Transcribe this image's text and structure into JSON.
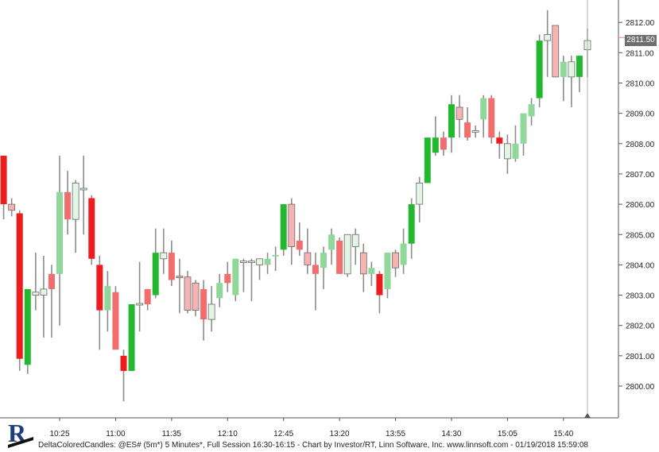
{
  "footer_text": "DeltaColoredCandles: @ES# (5m*) 5 Minutes*, Full Session 16:30-16:15 - Chart by Investor/RT, Linn Software, Inc. www.linnsoft.com - 01/19/2018 15:59:08",
  "last_price_label": "2811.50",
  "logo_letter": "R",
  "colors": {
    "strong_down": "#ee1c1c",
    "mid_down": "#f26d6d",
    "light_down": "#f6b3b3",
    "strong_up": "#23b82f",
    "mid_up": "#8fd89a",
    "light_up": "#e3f6e5",
    "wick": "#8c8c8c"
  },
  "chart_data": {
    "type": "candlestick",
    "title": "",
    "ylim": [
      2799.2,
      2812.6
    ],
    "yticks": [
      "2800.00",
      "2801.00",
      "2802.00",
      "2803.00",
      "2804.00",
      "2805.00",
      "2806.00",
      "2807.00",
      "2808.00",
      "2809.00",
      "2810.00",
      "2811.00",
      "2812.00"
    ],
    "xticks": [
      "10:25",
      "11:00",
      "11:35",
      "12:10",
      "12:45",
      "13:20",
      "13:55",
      "14:30",
      "15:05",
      "15:40"
    ],
    "candles": [
      {
        "o": 2807.6,
        "h": 2807.6,
        "l": 2805.5,
        "c": 2806.0,
        "shade": "strong_down"
      },
      {
        "o": 2806.0,
        "h": 2806.2,
        "l": 2805.6,
        "c": 2805.8,
        "shade": "light_down"
      },
      {
        "o": 2805.7,
        "h": 2805.8,
        "l": 2800.5,
        "c": 2800.9,
        "shade": "strong_down"
      },
      {
        "o": 2800.7,
        "h": 2803.2,
        "l": 2800.4,
        "c": 2803.2,
        "shade": "strong_up"
      },
      {
        "o": 2803.0,
        "h": 2804.4,
        "l": 2802.5,
        "c": 2803.1,
        "shade": "light_up"
      },
      {
        "o": 2803.0,
        "h": 2804.3,
        "l": 2801.6,
        "c": 2803.2,
        "shade": "light_up"
      },
      {
        "o": 2803.2,
        "h": 2804.0,
        "l": 2801.6,
        "c": 2803.7,
        "shade": "mid_down"
      },
      {
        "o": 2803.7,
        "h": 2807.6,
        "l": 2802.0,
        "c": 2806.4,
        "shade": "mid_up"
      },
      {
        "o": 2806.4,
        "h": 2807.1,
        "l": 2805.0,
        "c": 2805.5,
        "shade": "mid_down"
      },
      {
        "o": 2805.5,
        "h": 2806.8,
        "l": 2804.4,
        "c": 2806.7,
        "shade": "light_up"
      },
      {
        "o": 2806.5,
        "h": 2807.6,
        "l": 2805.0,
        "c": 2806.5,
        "shade": "light_up"
      },
      {
        "o": 2806.2,
        "h": 2806.3,
        "l": 2804.0,
        "c": 2804.2,
        "shade": "strong_down"
      },
      {
        "o": 2804.0,
        "h": 2804.3,
        "l": 2801.2,
        "c": 2802.5,
        "shade": "strong_down"
      },
      {
        "o": 2802.5,
        "h": 2803.8,
        "l": 2801.8,
        "c": 2803.3,
        "shade": "mid_up"
      },
      {
        "o": 2803.1,
        "h": 2803.3,
        "l": 2801.3,
        "c": 2801.2,
        "shade": "mid_down"
      },
      {
        "o": 2801.0,
        "h": 2801.2,
        "l": 2799.5,
        "c": 2800.5,
        "shade": "strong_down"
      },
      {
        "o": 2800.5,
        "h": 2802.7,
        "l": 2800.5,
        "c": 2802.7,
        "shade": "strong_up"
      },
      {
        "o": 2802.7,
        "h": 2804.1,
        "l": 2801.8,
        "c": 2802.7,
        "shade": "light_up"
      },
      {
        "o": 2802.7,
        "h": 2803.1,
        "l": 2802.5,
        "c": 2803.2,
        "shade": "mid_down"
      },
      {
        "o": 2803.0,
        "h": 2805.2,
        "l": 2802.9,
        "c": 2804.4,
        "shade": "strong_up"
      },
      {
        "o": 2804.2,
        "h": 2805.2,
        "l": 2803.7,
        "c": 2804.4,
        "shade": "light_up"
      },
      {
        "o": 2804.4,
        "h": 2804.8,
        "l": 2803.3,
        "c": 2803.5,
        "shade": "mid_down"
      },
      {
        "o": 2803.6,
        "h": 2804.2,
        "l": 2802.4,
        "c": 2803.6,
        "shade": "light_down"
      },
      {
        "o": 2803.6,
        "h": 2803.8,
        "l": 2802.4,
        "c": 2802.5,
        "shade": "light_down"
      },
      {
        "o": 2803.4,
        "h": 2803.5,
        "l": 2802.3,
        "c": 2802.5,
        "shade": "light_down"
      },
      {
        "o": 2803.2,
        "h": 2803.5,
        "l": 2801.5,
        "c": 2802.2,
        "shade": "mid_down"
      },
      {
        "o": 2802.2,
        "h": 2803.3,
        "l": 2801.8,
        "c": 2802.7,
        "shade": "light_up"
      },
      {
        "o": 2802.9,
        "h": 2803.7,
        "l": 2802.6,
        "c": 2803.4,
        "shade": "mid_up"
      },
      {
        "o": 2803.7,
        "h": 2804.1,
        "l": 2803.1,
        "c": 2803.4,
        "shade": "mid_down"
      },
      {
        "o": 2803.0,
        "h": 2804.2,
        "l": 2802.8,
        "c": 2804.2,
        "shade": "mid_up"
      },
      {
        "o": 2804.1,
        "h": 2804.2,
        "l": 2803.1,
        "c": 2804.1,
        "shade": "light_up"
      },
      {
        "o": 2804.1,
        "h": 2804.2,
        "l": 2802.8,
        "c": 2804.1,
        "shade": "light_up"
      },
      {
        "o": 2804.0,
        "h": 2804.2,
        "l": 2803.5,
        "c": 2804.2,
        "shade": "light_up"
      },
      {
        "o": 2804.0,
        "h": 2804.4,
        "l": 2803.7,
        "c": 2804.2,
        "shade": "mid_up"
      },
      {
        "o": 2804.3,
        "h": 2804.6,
        "l": 2803.8,
        "c": 2804.3,
        "shade": "mid_up"
      },
      {
        "o": 2804.5,
        "h": 2806.0,
        "l": 2804.3,
        "c": 2806.0,
        "shade": "strong_up"
      },
      {
        "o": 2806.0,
        "h": 2806.2,
        "l": 2804.0,
        "c": 2804.6,
        "shade": "light_down"
      },
      {
        "o": 2804.8,
        "h": 2805.4,
        "l": 2804.3,
        "c": 2804.5,
        "shade": "mid_down"
      },
      {
        "o": 2804.4,
        "h": 2805.2,
        "l": 2803.7,
        "c": 2804.0,
        "shade": "light_down"
      },
      {
        "o": 2804.0,
        "h": 2804.4,
        "l": 2802.5,
        "c": 2803.7,
        "shade": "mid_down"
      },
      {
        "o": 2803.9,
        "h": 2804.6,
        "l": 2803.2,
        "c": 2804.4,
        "shade": "mid_up"
      },
      {
        "o": 2804.5,
        "h": 2805.2,
        "l": 2804.0,
        "c": 2805.0,
        "shade": "mid_up"
      },
      {
        "o": 2804.8,
        "h": 2804.9,
        "l": 2803.7,
        "c": 2803.7,
        "shade": "mid_down"
      },
      {
        "o": 2803.7,
        "h": 2805.0,
        "l": 2803.6,
        "c": 2805.0,
        "shade": "light_up"
      },
      {
        "o": 2805.0,
        "h": 2805.2,
        "l": 2804.0,
        "c": 2804.6,
        "shade": "light_up"
      },
      {
        "o": 2804.4,
        "h": 2804.7,
        "l": 2803.1,
        "c": 2803.7,
        "shade": "light_down"
      },
      {
        "o": 2803.7,
        "h": 2804.1,
        "l": 2803.3,
        "c": 2803.9,
        "shade": "mid_up"
      },
      {
        "o": 2803.7,
        "h": 2803.8,
        "l": 2802.4,
        "c": 2803.0,
        "shade": "strong_down"
      },
      {
        "o": 2803.2,
        "h": 2804.4,
        "l": 2802.9,
        "c": 2804.4,
        "shade": "mid_up"
      },
      {
        "o": 2803.9,
        "h": 2804.5,
        "l": 2803.6,
        "c": 2804.4,
        "shade": "light_down"
      },
      {
        "o": 2804.0,
        "h": 2805.2,
        "l": 2803.7,
        "c": 2804.7,
        "shade": "mid_up"
      },
      {
        "o": 2804.7,
        "h": 2806.2,
        "l": 2804.2,
        "c": 2806.0,
        "shade": "strong_up"
      },
      {
        "o": 2806.0,
        "h": 2806.9,
        "l": 2805.4,
        "c": 2806.7,
        "shade": "light_up"
      },
      {
        "o": 2806.7,
        "h": 2808.2,
        "l": 2806.7,
        "c": 2808.2,
        "shade": "strong_up"
      },
      {
        "o": 2807.7,
        "h": 2808.9,
        "l": 2807.6,
        "c": 2808.2,
        "shade": "strong_up"
      },
      {
        "o": 2807.8,
        "h": 2808.4,
        "l": 2807.6,
        "c": 2808.2,
        "shade": "mid_down"
      },
      {
        "o": 2808.2,
        "h": 2809.6,
        "l": 2807.7,
        "c": 2809.3,
        "shade": "strong_up"
      },
      {
        "o": 2809.2,
        "h": 2809.6,
        "l": 2808.2,
        "c": 2808.8,
        "shade": "light_down"
      },
      {
        "o": 2808.7,
        "h": 2809.2,
        "l": 2808.1,
        "c": 2808.2,
        "shade": "mid_down"
      },
      {
        "o": 2808.4,
        "h": 2808.6,
        "l": 2808.2,
        "c": 2808.4,
        "shade": "light_up"
      },
      {
        "o": 2808.8,
        "h": 2809.6,
        "l": 2808.2,
        "c": 2809.5,
        "shade": "mid_up"
      },
      {
        "o": 2809.5,
        "h": 2809.6,
        "l": 2808.0,
        "c": 2808.2,
        "shade": "mid_down"
      },
      {
        "o": 2808.2,
        "h": 2808.4,
        "l": 2807.5,
        "c": 2808.0,
        "shade": "strong_down"
      },
      {
        "o": 2807.5,
        "h": 2808.3,
        "l": 2807.0,
        "c": 2808.0,
        "shade": "light_up"
      },
      {
        "o": 2807.5,
        "h": 2808.6,
        "l": 2807.4,
        "c": 2808.0,
        "shade": "mid_up"
      },
      {
        "o": 2808.0,
        "h": 2808.9,
        "l": 2807.6,
        "c": 2809.0,
        "shade": "mid_up"
      },
      {
        "o": 2808.9,
        "h": 2809.5,
        "l": 2808.6,
        "c": 2809.3,
        "shade": "mid_up"
      },
      {
        "o": 2809.5,
        "h": 2811.6,
        "l": 2809.2,
        "c": 2811.4,
        "shade": "strong_up"
      },
      {
        "o": 2811.4,
        "h": 2812.4,
        "l": 2810.2,
        "c": 2811.6,
        "shade": "light_up"
      },
      {
        "o": 2811.9,
        "h": 2811.9,
        "l": 2810.2,
        "c": 2810.2,
        "shade": "light_down"
      },
      {
        "o": 2810.2,
        "h": 2810.9,
        "l": 2809.4,
        "c": 2810.7,
        "shade": "mid_up"
      },
      {
        "o": 2810.2,
        "h": 2810.9,
        "l": 2809.2,
        "c": 2810.7,
        "shade": "light_up"
      },
      {
        "o": 2810.2,
        "h": 2810.9,
        "l": 2809.7,
        "c": 2810.9,
        "shade": "strong_up"
      },
      {
        "o": 2811.1,
        "h": 2811.8,
        "l": 2810.2,
        "c": 2811.4,
        "shade": "light_up"
      }
    ]
  }
}
